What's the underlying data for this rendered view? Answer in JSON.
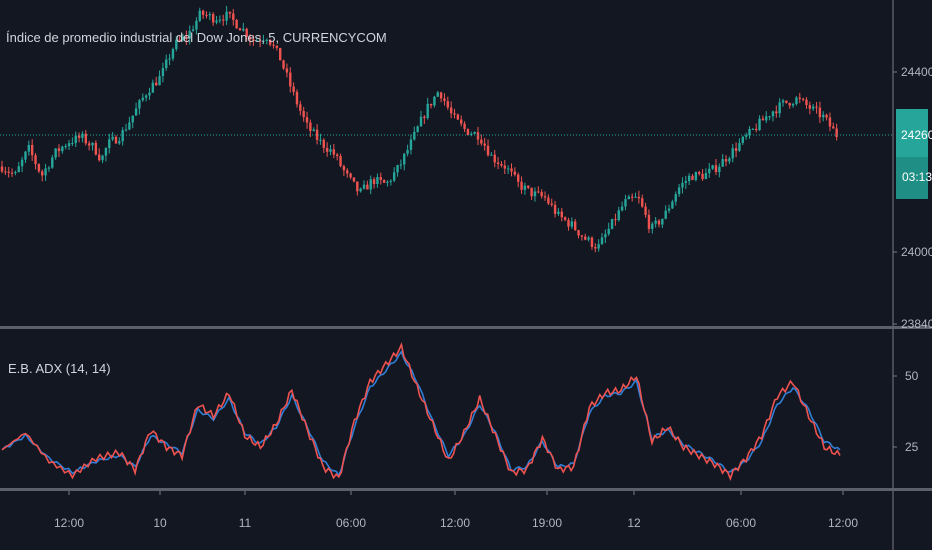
{
  "colors": {
    "background": "#131722",
    "candle_up": "#26a69a",
    "candle_down": "#ef5350",
    "price_line": "#26a69a",
    "price_badge": "#26a69a",
    "adx_line_blue": "#2f7fd6",
    "adx_line_red": "#ef5350",
    "separator": "#787b86",
    "axis_text": "#b2b5be"
  },
  "chart_data": [
    {
      "type": "candlestick",
      "title": "Índice de promedio industrial del Dow Jones, 5, CURRENCYCOM",
      "y_ticks": [
        "24400",
        "24000",
        "23840"
      ],
      "ylim": [
        23840,
        24540
      ],
      "current_price_label": "24260",
      "countdown_label": "03:13",
      "current_price": 24260,
      "close_path": [
        [
          0,
          24190
        ],
        [
          4,
          24170
        ],
        [
          8,
          24230
        ],
        [
          12,
          24170
        ],
        [
          16,
          24220
        ],
        [
          20,
          24245
        ],
        [
          24,
          24255
        ],
        [
          28,
          24230
        ],
        [
          30,
          24205
        ],
        [
          32,
          24240
        ],
        [
          36,
          24260
        ],
        [
          40,
          24310
        ],
        [
          44,
          24360
        ],
        [
          48,
          24390
        ],
        [
          52,
          24460
        ],
        [
          56,
          24480
        ],
        [
          60,
          24530
        ],
        [
          64,
          24520
        ],
        [
          68,
          24525
        ],
        [
          72,
          24500
        ],
        [
          76,
          24470
        ],
        [
          80,
          24480
        ],
        [
          84,
          24430
        ],
        [
          88,
          24350
        ],
        [
          92,
          24280
        ],
        [
          96,
          24245
        ],
        [
          100,
          24220
        ],
        [
          104,
          24170
        ],
        [
          108,
          24130
        ],
        [
          112,
          24160
        ],
        [
          116,
          24150
        ],
        [
          120,
          24190
        ],
        [
          124,
          24250
        ],
        [
          128,
          24315
        ],
        [
          132,
          24360
        ],
        [
          136,
          24300
        ],
        [
          140,
          24270
        ],
        [
          144,
          24260
        ],
        [
          148,
          24210
        ],
        [
          152,
          24190
        ],
        [
          156,
          24150
        ],
        [
          160,
          24130
        ],
        [
          164,
          24120
        ],
        [
          168,
          24080
        ],
        [
          172,
          24060
        ],
        [
          176,
          24030
        ],
        [
          180,
          24010
        ],
        [
          184,
          24060
        ],
        [
          188,
          24110
        ],
        [
          192,
          24120
        ],
        [
          196,
          24050
        ],
        [
          200,
          24080
        ],
        [
          204,
          24140
        ],
        [
          208,
          24170
        ],
        [
          212,
          24170
        ],
        [
          216,
          24190
        ],
        [
          220,
          24220
        ],
        [
          224,
          24250
        ],
        [
          228,
          24280
        ],
        [
          232,
          24310
        ],
        [
          236,
          24330
        ],
        [
          240,
          24340
        ],
        [
          244,
          24320
        ],
        [
          248,
          24300
        ],
        [
          252,
          24260
        ]
      ]
    },
    {
      "type": "line",
      "title": "E.B. ADX (14, 14)",
      "y_ticks": [
        "50",
        "25"
      ],
      "ylim": [
        5,
        68
      ],
      "series": [
        {
          "color": "#2f7fd6",
          "points": [
            [
              0,
              24
            ],
            [
              6,
              29
            ],
            [
              12,
              21
            ],
            [
              18,
              16
            ],
            [
              24,
              20
            ],
            [
              30,
              22
            ],
            [
              34,
              18
            ],
            [
              38,
              29
            ],
            [
              42,
              26
            ],
            [
              46,
              23
            ],
            [
              50,
              38
            ],
            [
              54,
              35
            ],
            [
              58,
              42
            ],
            [
              62,
              30
            ],
            [
              66,
              26
            ],
            [
              70,
              32
            ],
            [
              74,
              43
            ],
            [
              78,
              32
            ],
            [
              82,
              20
            ],
            [
              86,
              15
            ],
            [
              90,
              32
            ],
            [
              94,
              46
            ],
            [
              98,
              52
            ],
            [
              102,
              58
            ],
            [
              106,
              48
            ],
            [
              110,
              34
            ],
            [
              114,
              22
            ],
            [
              118,
              29
            ],
            [
              122,
              40
            ],
            [
              126,
              30
            ],
            [
              130,
              17
            ],
            [
              134,
              18
            ],
            [
              138,
              27
            ],
            [
              142,
              18
            ],
            [
              146,
              19
            ],
            [
              150,
              37
            ],
            [
              154,
              43
            ],
            [
              158,
              44
            ],
            [
              162,
              48
            ],
            [
              166,
              28
            ],
            [
              170,
              31
            ],
            [
              174,
              26
            ],
            [
              178,
              23
            ],
            [
              182,
              20
            ],
            [
              186,
              16
            ],
            [
              190,
              20
            ],
            [
              194,
              27
            ],
            [
              198,
              40
            ],
            [
              202,
              46
            ],
            [
              206,
              38
            ],
            [
              210,
              27
            ],
            [
              214,
              24
            ]
          ]
        },
        {
          "color": "#ef5350",
          "points": [
            [
              0,
              24
            ],
            [
              6,
              30
            ],
            [
              12,
              20
            ],
            [
              18,
              15
            ],
            [
              24,
              21
            ],
            [
              30,
              23
            ],
            [
              34,
              17
            ],
            [
              38,
              31
            ],
            [
              42,
              25
            ],
            [
              46,
              22
            ],
            [
              50,
              40
            ],
            [
              54,
              36
            ],
            [
              58,
              44
            ],
            [
              62,
              29
            ],
            [
              66,
              25
            ],
            [
              70,
              33
            ],
            [
              74,
              45
            ],
            [
              78,
              31
            ],
            [
              82,
              18
            ],
            [
              86,
              14
            ],
            [
              90,
              34
            ],
            [
              94,
              48
            ],
            [
              98,
              54
            ],
            [
              102,
              60
            ],
            [
              106,
              46
            ],
            [
              110,
              33
            ],
            [
              114,
              20
            ],
            [
              118,
              30
            ],
            [
              122,
              42
            ],
            [
              126,
              29
            ],
            [
              130,
              16
            ],
            [
              134,
              17
            ],
            [
              138,
              28
            ],
            [
              142,
              17
            ],
            [
              146,
              18
            ],
            [
              150,
              39
            ],
            [
              154,
              44
            ],
            [
              158,
              45
            ],
            [
              162,
              50
            ],
            [
              166,
              27
            ],
            [
              170,
              32
            ],
            [
              174,
              25
            ],
            [
              178,
              22
            ],
            [
              182,
              19
            ],
            [
              186,
              15
            ],
            [
              190,
              21
            ],
            [
              194,
              29
            ],
            [
              198,
              43
            ],
            [
              202,
              48
            ],
            [
              206,
              36
            ],
            [
              210,
              25
            ],
            [
              214,
              22
            ]
          ]
        }
      ]
    }
  ],
  "time_axis": {
    "labels": [
      "12:00",
      "10",
      "11",
      "06:00",
      "12:00",
      "19:00",
      "12",
      "06:00",
      "12:00"
    ]
  }
}
